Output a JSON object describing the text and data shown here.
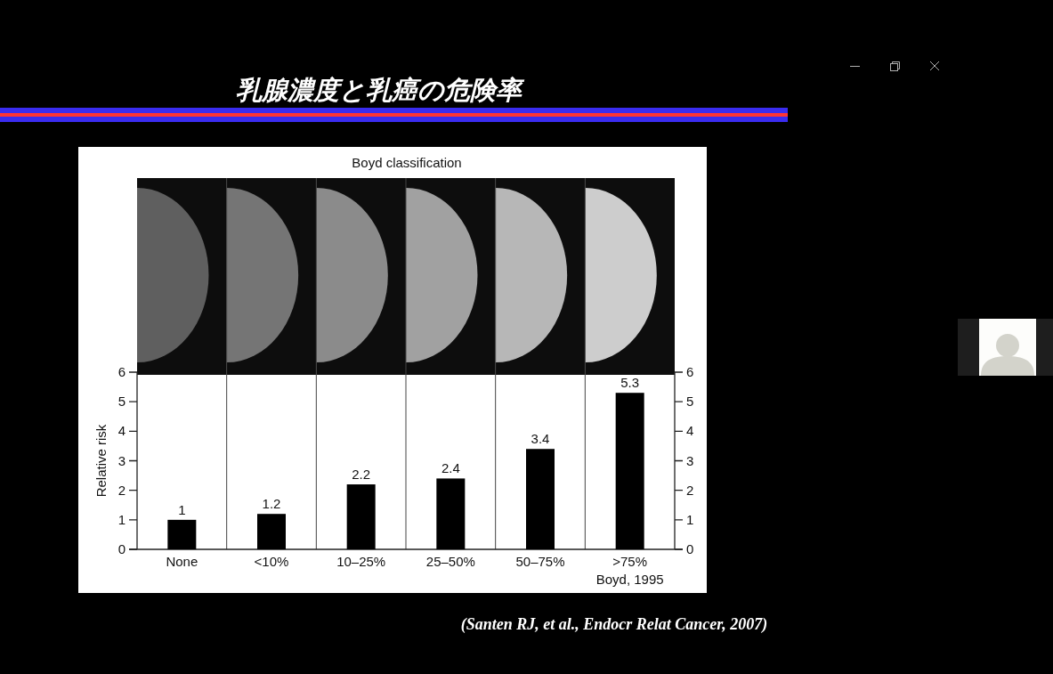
{
  "chart_data": {
    "type": "bar",
    "title": "乳腺濃度と乳癌の危険率",
    "subtitle": "Boyd classification",
    "categories": [
      "None",
      "<10%",
      "10–25%",
      "25–50%",
      "50–75%",
      ">75%"
    ],
    "values": [
      1,
      1.2,
      2.2,
      2.4,
      3.4,
      5.3
    ],
    "color": "#000000",
    "data_labels": true,
    "ylabel": "Relative risk",
    "ylim": [
      0,
      6
    ],
    "yticks": [
      0,
      1,
      2,
      3,
      4,
      5,
      6
    ],
    "y2lim": [
      0,
      6
    ],
    "y2ticks": [
      0,
      1,
      2,
      3,
      4,
      5,
      6
    ],
    "annotations": [
      "Boyd, 1995",
      "(Santen RJ, et al., Endocr Relat Cancer, 2007)"
    ]
  }
}
